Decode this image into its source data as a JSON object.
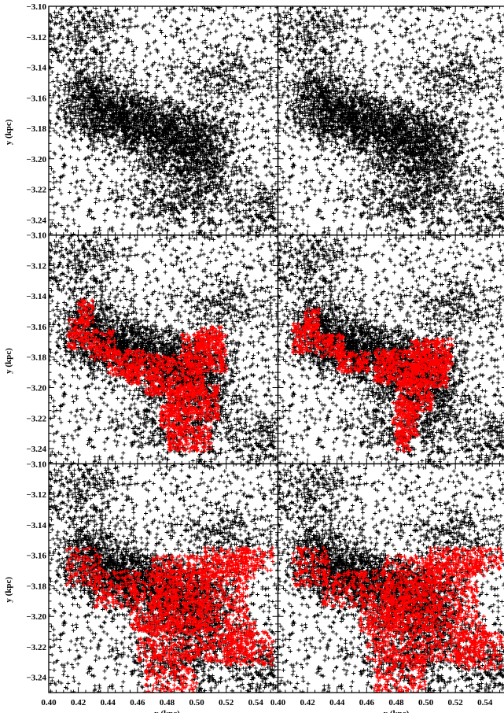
{
  "chart_data": {
    "type": "scatter",
    "layout": "3x2 grid of panels (rows share y axis, columns share x axis); right column clipped at image edge",
    "xlabel": "x (kpc)",
    "ylabel": "y (kpc)",
    "xlim": [
      0.4,
      0.555
    ],
    "ylim": [
      -3.25,
      -3.1
    ],
    "x_ticks": [
      "0.40",
      "0.42",
      "0.44",
      "0.46",
      "0.48",
      "0.50",
      "0.52",
      "0.54"
    ],
    "x_tick_values": [
      0.4,
      0.42,
      0.44,
      0.46,
      0.48,
      0.5,
      0.52,
      0.54
    ],
    "y_ticks": [
      "-3.10",
      "-3.12",
      "-3.14",
      "-3.16",
      "-3.18",
      "-3.20",
      "-3.22",
      "-3.24"
    ],
    "y_tick_values": [
      -3.1,
      -3.12,
      -3.14,
      -3.16,
      -3.18,
      -3.2,
      -3.22,
      -3.24
    ],
    "marker": "plus",
    "colors": {
      "background_points": "#000000",
      "selected_points": "#ff0000"
    },
    "background_structures": {
      "description": "black '+' point cloud: dense filament from (0.42,-3.17) to (0.51,-3.20), sparser elsewhere",
      "dense_clumps": [
        {
          "x": 0.43,
          "y": -3.165,
          "sx": 0.012,
          "sy": 0.012,
          "w": 0.18
        },
        {
          "x": 0.455,
          "y": -3.175,
          "sx": 0.012,
          "sy": 0.01,
          "w": 0.16
        },
        {
          "x": 0.48,
          "y": -3.185,
          "sx": 0.012,
          "sy": 0.011,
          "w": 0.18
        },
        {
          "x": 0.505,
          "y": -3.195,
          "sx": 0.012,
          "sy": 0.015,
          "w": 0.18
        },
        {
          "x": 0.49,
          "y": -3.225,
          "sx": 0.022,
          "sy": 0.012,
          "w": 0.12
        },
        {
          "x": 0.425,
          "y": -3.12,
          "sx": 0.015,
          "sy": 0.014,
          "w": 0.08
        },
        {
          "x": 0.52,
          "y": -3.145,
          "sx": 0.015,
          "sy": 0.01,
          "w": 0.06
        },
        {
          "x": 0.545,
          "y": -3.235,
          "sx": 0.01,
          "sy": 0.01,
          "w": 0.04
        }
      ],
      "uniform_fraction": 0.35,
      "points_per_panel": 5200
    },
    "panels": [
      {
        "row": 1,
        "col": 1,
        "selection": "none"
      },
      {
        "row": 1,
        "col": 2,
        "selection": "none"
      },
      {
        "row": 2,
        "col": 1,
        "selection": "compact",
        "red_regions": [
          {
            "x": [
              0.413,
              0.428
            ],
            "y": [
              -3.175,
              -3.155
            ]
          },
          {
            "x": [
              0.42,
              0.43
            ],
            "y": [
              -3.158,
              -3.142
            ]
          },
          {
            "x": [
              0.428,
              0.445
            ],
            "y": [
              -3.182,
              -3.162
            ]
          },
          {
            "x": [
              0.44,
              0.465
            ],
            "y": [
              -3.192,
              -3.175
            ]
          },
          {
            "x": [
              0.452,
              0.462
            ],
            "y": [
              -3.198,
              -3.185
            ]
          },
          {
            "x": [
              0.465,
              0.505
            ],
            "y": [
              -3.205,
              -3.178
            ]
          },
          {
            "x": [
              0.49,
              0.52
            ],
            "y": [
              -3.19,
              -3.165
            ]
          },
          {
            "x": [
              0.5,
              0.517
            ],
            "y": [
              -3.175,
              -3.16
            ]
          },
          {
            "x": [
              0.48,
              0.515
            ],
            "y": [
              -3.222,
              -3.198
            ]
          },
          {
            "x": [
              0.475,
              0.495
            ],
            "y": [
              -3.228,
              -3.212
            ]
          },
          {
            "x": [
              0.48,
              0.51
            ],
            "y": [
              -3.242,
              -3.225
            ]
          }
        ],
        "red_points": 1900
      },
      {
        "row": 2,
        "col": 2,
        "selection": "compact",
        "red_regions": [
          {
            "x": [
              0.41,
              0.428
            ],
            "y": [
              -3.178,
              -3.158
            ]
          },
          {
            "x": [
              0.418,
              0.428
            ],
            "y": [
              -3.162,
              -3.148
            ]
          },
          {
            "x": [
              0.428,
              0.445
            ],
            "y": [
              -3.18,
              -3.165
            ]
          },
          {
            "x": [
              0.44,
              0.462
            ],
            "y": [
              -3.19,
              -3.176
            ]
          },
          {
            "x": [
              0.465,
              0.5
            ],
            "y": [
              -3.198,
              -3.175
            ]
          },
          {
            "x": [
              0.49,
              0.518
            ],
            "y": [
              -3.19,
              -3.168
            ]
          },
          {
            "x": [
              0.5,
              0.515
            ],
            "y": [
              -3.2,
              -3.185
            ]
          },
          {
            "x": [
              0.48,
              0.505
            ],
            "y": [
              -3.215,
              -3.195
            ]
          },
          {
            "x": [
              0.478,
              0.495
            ],
            "y": [
              -3.232,
              -3.21
            ]
          },
          {
            "x": [
              0.48,
              0.49
            ],
            "y": [
              -3.242,
              -3.228
            ]
          }
        ],
        "red_points": 1600
      },
      {
        "row": 3,
        "col": 1,
        "selection": "extended",
        "red_regions": [
          {
            "x": [
              0.412,
              0.435
            ],
            "y": [
              -3.18,
              -3.155
            ]
          },
          {
            "x": [
              0.43,
              0.46
            ],
            "y": [
              -3.195,
              -3.17
            ]
          },
          {
            "x": [
              0.455,
              0.51
            ],
            "y": [
              -3.21,
              -3.17
            ]
          },
          {
            "x": [
              0.47,
              0.535
            ],
            "y": [
              -3.2,
              -3.16
            ]
          },
          {
            "x": [
              0.505,
              0.54
            ],
            "y": [
              -3.175,
              -3.155
            ]
          },
          {
            "x": [
              0.53,
              0.552
            ],
            "y": [
              -3.17,
              -3.155
            ]
          },
          {
            "x": [
              0.46,
              0.54
            ],
            "y": [
              -3.23,
              -3.2
            ]
          },
          {
            "x": [
              0.52,
              0.552
            ],
            "y": [
              -3.232,
              -3.21
            ]
          },
          {
            "x": [
              0.465,
              0.5
            ],
            "y": [
              -3.25,
              -3.225
            ]
          }
        ],
        "red_points": 3300
      },
      {
        "row": 3,
        "col": 2,
        "selection": "extended",
        "red_regions": [
          {
            "x": [
              0.41,
              0.435
            ],
            "y": [
              -3.18,
              -3.155
            ]
          },
          {
            "x": [
              0.43,
              0.46
            ],
            "y": [
              -3.195,
              -3.17
            ]
          },
          {
            "x": [
              0.455,
              0.51
            ],
            "y": [
              -3.21,
              -3.17
            ]
          },
          {
            "x": [
              0.47,
              0.535
            ],
            "y": [
              -3.2,
              -3.16
            ]
          },
          {
            "x": [
              0.5,
              0.54
            ],
            "y": [
              -3.175,
              -3.155
            ]
          },
          {
            "x": [
              0.53,
              0.552
            ],
            "y": [
              -3.17,
              -3.155
            ]
          },
          {
            "x": [
              0.46,
              0.54
            ],
            "y": [
              -3.23,
              -3.2
            ]
          },
          {
            "x": [
              0.52,
              0.552
            ],
            "y": [
              -3.235,
              -3.21
            ]
          },
          {
            "x": [
              0.465,
              0.5
            ],
            "y": [
              -3.25,
              -3.225
            ]
          }
        ],
        "red_points": 3300
      }
    ]
  }
}
